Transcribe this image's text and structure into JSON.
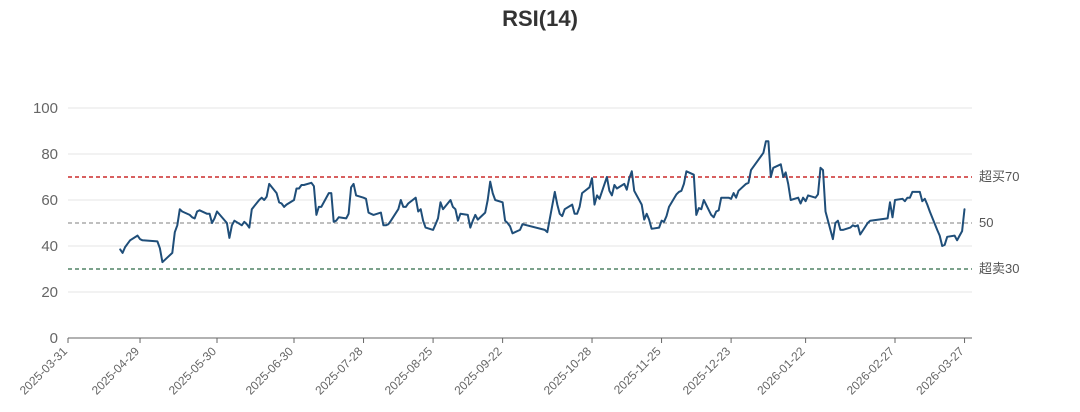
{
  "chart_data": {
    "type": "line",
    "title": "RSI(14)",
    "xlabel": "",
    "ylabel": "",
    "x_range": [
      "2025-03-31",
      "2026-03-30"
    ],
    "ylim": [
      0,
      100
    ],
    "yticks": [
      0,
      20,
      40,
      60,
      80,
      100
    ],
    "xticks": [
      "2025-03-31",
      "2025-04-29",
      "2025-05-30",
      "2025-06-30",
      "2025-07-28",
      "2025-08-25",
      "2025-09-22",
      "2025-10-28",
      "2025-11-25",
      "2025-12-23",
      "2026-01-22",
      "2026-02-27",
      "2026-03-27"
    ],
    "grid": true,
    "reference_lines": [
      {
        "value": 70,
        "label": "超买70",
        "color": "#c00000",
        "style": "dashed"
      },
      {
        "value": 50,
        "label": "50",
        "color": "#999999",
        "style": "dashed"
      },
      {
        "value": 30,
        "label": "超卖30",
        "color": "#2e6b47",
        "style": "dashed"
      }
    ],
    "series": [
      {
        "color": "#1f4e79",
        "points": [
          [
            "2025-04-21",
            38.5
          ],
          [
            "2025-04-22",
            37
          ],
          [
            "2025-04-23",
            39.5
          ],
          [
            "2025-04-24",
            41
          ],
          [
            "2025-04-25",
            42.5
          ],
          [
            "2025-04-28",
            44.5
          ],
          [
            "2025-04-29",
            43
          ],
          [
            "2025-04-30",
            42.5
          ],
          [
            "2025-05-06",
            42
          ],
          [
            "2025-05-07",
            39
          ],
          [
            "2025-05-08",
            33
          ],
          [
            "2025-05-09",
            34
          ],
          [
            "2025-05-12",
            37
          ],
          [
            "2025-05-13",
            46
          ],
          [
            "2025-05-14",
            49
          ],
          [
            "2025-05-15",
            56
          ],
          [
            "2025-05-16",
            55
          ],
          [
            "2025-05-19",
            53.5
          ],
          [
            "2025-05-20",
            52.5
          ],
          [
            "2025-05-21",
            52
          ],
          [
            "2025-05-22",
            55
          ],
          [
            "2025-05-23",
            55.5
          ],
          [
            "2025-05-26",
            54
          ],
          [
            "2025-05-27",
            54
          ],
          [
            "2025-05-28",
            50
          ],
          [
            "2025-05-29",
            52
          ],
          [
            "2025-05-30",
            55
          ],
          [
            "2025-06-03",
            50
          ],
          [
            "2025-06-04",
            43.5
          ],
          [
            "2025-06-05",
            49
          ],
          [
            "2025-06-06",
            51
          ],
          [
            "2025-06-09",
            49
          ],
          [
            "2025-06-10",
            50.5
          ],
          [
            "2025-06-11",
            49.5
          ],
          [
            "2025-06-12",
            48
          ],
          [
            "2025-06-13",
            56
          ],
          [
            "2025-06-16",
            60
          ],
          [
            "2025-06-17",
            61
          ],
          [
            "2025-06-18",
            60
          ],
          [
            "2025-06-19",
            61.5
          ],
          [
            "2025-06-20",
            67
          ],
          [
            "2025-06-23",
            63
          ],
          [
            "2025-06-24",
            59
          ],
          [
            "2025-06-25",
            58.5
          ],
          [
            "2025-06-26",
            57
          ],
          [
            "2025-06-27",
            58
          ],
          [
            "2025-06-30",
            60
          ],
          [
            "2025-07-01",
            65
          ],
          [
            "2025-07-02",
            65
          ],
          [
            "2025-07-03",
            66.5
          ],
          [
            "2025-07-04",
            66.5
          ],
          [
            "2025-07-07",
            67.5
          ],
          [
            "2025-07-08",
            66
          ],
          [
            "2025-07-09",
            53.5
          ],
          [
            "2025-07-10",
            57
          ],
          [
            "2025-07-11",
            57
          ],
          [
            "2025-07-14",
            63
          ],
          [
            "2025-07-15",
            63
          ],
          [
            "2025-07-16",
            50.5
          ],
          [
            "2025-07-17",
            51
          ],
          [
            "2025-07-18",
            52.5
          ],
          [
            "2025-07-21",
            52
          ],
          [
            "2025-07-22",
            54
          ],
          [
            "2025-07-23",
            65.5
          ],
          [
            "2025-07-24",
            67
          ],
          [
            "2025-07-25",
            62
          ],
          [
            "2025-07-28",
            61
          ],
          [
            "2025-07-29",
            60.5
          ],
          [
            "2025-07-30",
            54.5
          ],
          [
            "2025-07-31",
            54
          ],
          [
            "2025-08-01",
            53.5
          ],
          [
            "2025-08-04",
            54.5
          ],
          [
            "2025-08-05",
            49
          ],
          [
            "2025-08-06",
            49
          ],
          [
            "2025-08-07",
            49.5
          ],
          [
            "2025-08-08",
            51
          ],
          [
            "2025-08-11",
            56
          ],
          [
            "2025-08-12",
            60
          ],
          [
            "2025-08-13",
            57
          ],
          [
            "2025-08-14",
            57
          ],
          [
            "2025-08-15",
            58.5
          ],
          [
            "2025-08-18",
            61
          ],
          [
            "2025-08-19",
            55
          ],
          [
            "2025-08-20",
            56
          ],
          [
            "2025-08-21",
            51
          ],
          [
            "2025-08-22",
            48
          ],
          [
            "2025-08-25",
            47
          ],
          [
            "2025-08-26",
            49.5
          ],
          [
            "2025-08-27",
            52
          ],
          [
            "2025-08-28",
            59
          ],
          [
            "2025-08-29",
            56
          ],
          [
            "2025-09-01",
            60
          ],
          [
            "2025-09-02",
            57
          ],
          [
            "2025-09-03",
            56
          ],
          [
            "2025-09-04",
            51
          ],
          [
            "2025-09-05",
            54
          ],
          [
            "2025-09-08",
            53.5
          ],
          [
            "2025-09-09",
            48
          ],
          [
            "2025-09-10",
            51
          ],
          [
            "2025-09-11",
            53.5
          ],
          [
            "2025-09-12",
            51.5
          ],
          [
            "2025-09-15",
            54.5
          ],
          [
            "2025-09-16",
            60
          ],
          [
            "2025-09-17",
            68
          ],
          [
            "2025-09-18",
            63
          ],
          [
            "2025-09-19",
            60
          ],
          [
            "2025-09-22",
            59
          ],
          [
            "2025-09-23",
            51
          ],
          [
            "2025-09-24",
            50
          ],
          [
            "2025-09-25",
            48.5
          ],
          [
            "2025-09-26",
            45.5
          ],
          [
            "2025-09-29",
            47
          ],
          [
            "2025-09-30",
            49.5
          ],
          [
            "2025-10-09",
            47
          ],
          [
            "2025-10-10",
            46
          ],
          [
            "2025-10-13",
            63.5
          ],
          [
            "2025-10-14",
            58
          ],
          [
            "2025-10-15",
            54
          ],
          [
            "2025-10-16",
            53
          ],
          [
            "2025-10-17",
            56
          ],
          [
            "2025-10-20",
            58
          ],
          [
            "2025-10-21",
            54
          ],
          [
            "2025-10-22",
            54
          ],
          [
            "2025-10-23",
            57
          ],
          [
            "2025-10-24",
            63
          ],
          [
            "2025-10-27",
            65.5
          ],
          [
            "2025-10-28",
            69.5
          ],
          [
            "2025-10-29",
            58
          ],
          [
            "2025-10-30",
            62
          ],
          [
            "2025-10-31",
            60.5
          ],
          [
            "2025-11-03",
            70
          ],
          [
            "2025-11-04",
            64
          ],
          [
            "2025-11-05",
            62
          ],
          [
            "2025-11-06",
            66.5
          ],
          [
            "2025-11-07",
            65
          ],
          [
            "2025-11-10",
            67
          ],
          [
            "2025-11-11",
            64.5
          ],
          [
            "2025-11-12",
            69.5
          ],
          [
            "2025-11-13",
            72.5
          ],
          [
            "2025-11-14",
            64
          ],
          [
            "2025-11-17",
            58
          ],
          [
            "2025-11-18",
            51.5
          ],
          [
            "2025-11-19",
            54
          ],
          [
            "2025-11-20",
            51.5
          ],
          [
            "2025-11-21",
            47.5
          ],
          [
            "2025-11-24",
            48
          ],
          [
            "2025-11-25",
            51
          ],
          [
            "2025-11-26",
            50.5
          ],
          [
            "2025-11-27",
            53
          ],
          [
            "2025-11-28",
            57
          ],
          [
            "2025-12-01",
            62.5
          ],
          [
            "2025-12-02",
            63.5
          ],
          [
            "2025-12-03",
            64
          ],
          [
            "2025-12-04",
            67
          ],
          [
            "2025-12-05",
            72.5
          ],
          [
            "2025-12-08",
            71
          ],
          [
            "2025-12-09",
            53.5
          ],
          [
            "2025-12-10",
            56.5
          ],
          [
            "2025-12-11",
            56
          ],
          [
            "2025-12-12",
            60
          ],
          [
            "2025-12-15",
            53.5
          ],
          [
            "2025-12-16",
            52.5
          ],
          [
            "2025-12-17",
            55
          ],
          [
            "2025-12-18",
            55.5
          ],
          [
            "2025-12-19",
            61
          ],
          [
            "2025-12-22",
            61
          ],
          [
            "2025-12-23",
            60.5
          ],
          [
            "2025-12-24",
            63
          ],
          [
            "2025-12-25",
            61
          ],
          [
            "2025-12-26",
            64
          ],
          [
            "2025-12-29",
            67
          ],
          [
            "2025-12-30",
            67.5
          ],
          [
            "2025-12-31",
            73
          ],
          [
            "2026-01-05",
            80.5
          ],
          [
            "2026-01-06",
            85.5
          ],
          [
            "2026-01-07",
            85.5
          ],
          [
            "2026-01-08",
            70
          ],
          [
            "2026-01-09",
            74
          ],
          [
            "2026-01-12",
            75.5
          ],
          [
            "2026-01-13",
            70
          ],
          [
            "2026-01-14",
            72
          ],
          [
            "2026-01-15",
            67
          ],
          [
            "2026-01-16",
            60
          ],
          [
            "2026-01-19",
            61
          ],
          [
            "2026-01-20",
            58.5
          ],
          [
            "2026-01-21",
            61
          ],
          [
            "2026-01-22",
            59.5
          ],
          [
            "2026-01-23",
            62
          ],
          [
            "2026-01-26",
            61
          ],
          [
            "2026-01-27",
            62.5
          ],
          [
            "2026-01-28",
            74
          ],
          [
            "2026-01-29",
            73
          ],
          [
            "2026-01-30",
            55
          ],
          [
            "2026-02-02",
            43
          ],
          [
            "2026-02-03",
            50
          ],
          [
            "2026-02-04",
            51
          ],
          [
            "2026-02-05",
            47
          ],
          [
            "2026-02-06",
            47
          ],
          [
            "2026-02-09",
            48
          ],
          [
            "2026-02-10",
            49
          ],
          [
            "2026-02-11",
            48.5
          ],
          [
            "2026-02-12",
            49
          ],
          [
            "2026-02-13",
            45
          ],
          [
            "2026-02-16",
            50
          ],
          [
            "2026-02-17",
            51
          ],
          [
            "2026-02-24",
            52
          ],
          [
            "2026-02-25",
            59
          ],
          [
            "2026-02-26",
            52.5
          ],
          [
            "2026-02-27",
            60
          ],
          [
            "2026-03-02",
            60.5
          ],
          [
            "2026-03-03",
            59.5
          ],
          [
            "2026-03-04",
            61
          ],
          [
            "2026-03-05",
            61
          ],
          [
            "2026-03-06",
            63.5
          ],
          [
            "2026-03-09",
            63.5
          ],
          [
            "2026-03-10",
            59.5
          ],
          [
            "2026-03-11",
            60.5
          ],
          [
            "2026-03-12",
            58
          ],
          [
            "2026-03-13",
            55
          ],
          [
            "2026-03-16",
            47
          ],
          [
            "2026-03-17",
            44.5
          ],
          [
            "2026-03-18",
            40
          ],
          [
            "2026-03-19",
            40.5
          ],
          [
            "2026-03-20",
            44
          ],
          [
            "2026-03-23",
            44.5
          ],
          [
            "2026-03-24",
            42.5
          ],
          [
            "2026-03-25",
            44.5
          ],
          [
            "2026-03-26",
            46.5
          ],
          [
            "2026-03-27",
            56
          ]
        ]
      }
    ]
  }
}
